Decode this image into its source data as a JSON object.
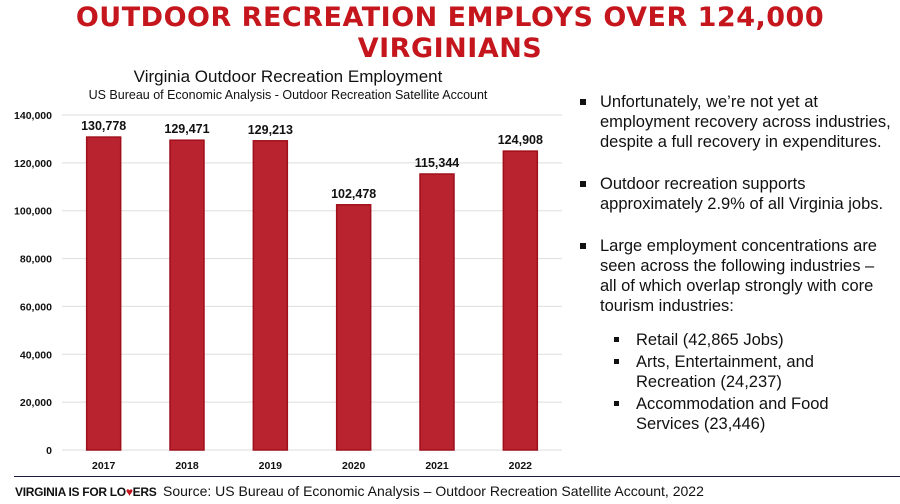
{
  "header": {
    "title": "OUTDOOR RECREATION EMPLOYS OVER 124,000 VIRGINIANS"
  },
  "chart_data": {
    "type": "bar",
    "title": "Virginia Outdoor Recreation Employment",
    "subtitle": "US Bureau of Economic Analysis - Outdoor Recreation Satellite Account",
    "categories": [
      "2017",
      "2018",
      "2019",
      "2020",
      "2021",
      "2022"
    ],
    "values": [
      130778,
      129471,
      129213,
      102478,
      115344,
      124908
    ],
    "value_labels": [
      "130,778",
      "129,471",
      "129,213",
      "102,478",
      "115,344",
      "124,908"
    ],
    "yticks": [
      0,
      20000,
      40000,
      60000,
      80000,
      100000,
      120000,
      140000
    ],
    "ytick_labels": [
      "0",
      "20,000",
      "40,000",
      "60,000",
      "80,000",
      "100,000",
      "120,000",
      "140,000"
    ],
    "ylim": [
      0,
      140000
    ],
    "xlabel": "",
    "ylabel": "",
    "grid": true,
    "bar_color": "#b8232f"
  },
  "bullets": [
    "Unfortunately, we’re not yet at employment recovery across industries, despite a full recovery in expenditures.",
    "Outdoor recreation supports approximately 2.9% of all Virginia jobs.",
    "Large employment concentrations are seen across the following industries – all of which overlap strongly with core tourism industries:"
  ],
  "sub_bullets": [
    "Retail (42,865 Jobs)",
    "Arts, Entertainment, and Recreation (24,237)",
    "Accommodation and Food Services (23,446)"
  ],
  "footer": {
    "logo_a": "VIRGINIA IS FOR LO",
    "logo_heart": "♥",
    "logo_b": "ERS",
    "source": "Source: US Bureau of Economic Analysis – Outdoor Recreation Satellite Account, 2022"
  }
}
